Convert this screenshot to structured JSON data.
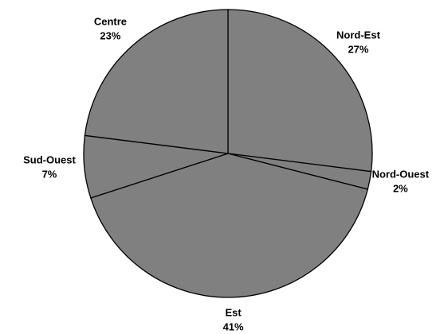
{
  "chart_data": {
    "type": "pie",
    "categories": [
      "Nord-Est",
      "Nord-Ouest",
      "Est",
      "Sud-Ouest",
      "Centre"
    ],
    "values": [
      27,
      2,
      41,
      7,
      23
    ],
    "value_labels": [
      "27%",
      "2%",
      "41%",
      "7%",
      "23%"
    ],
    "color": "#808080"
  }
}
